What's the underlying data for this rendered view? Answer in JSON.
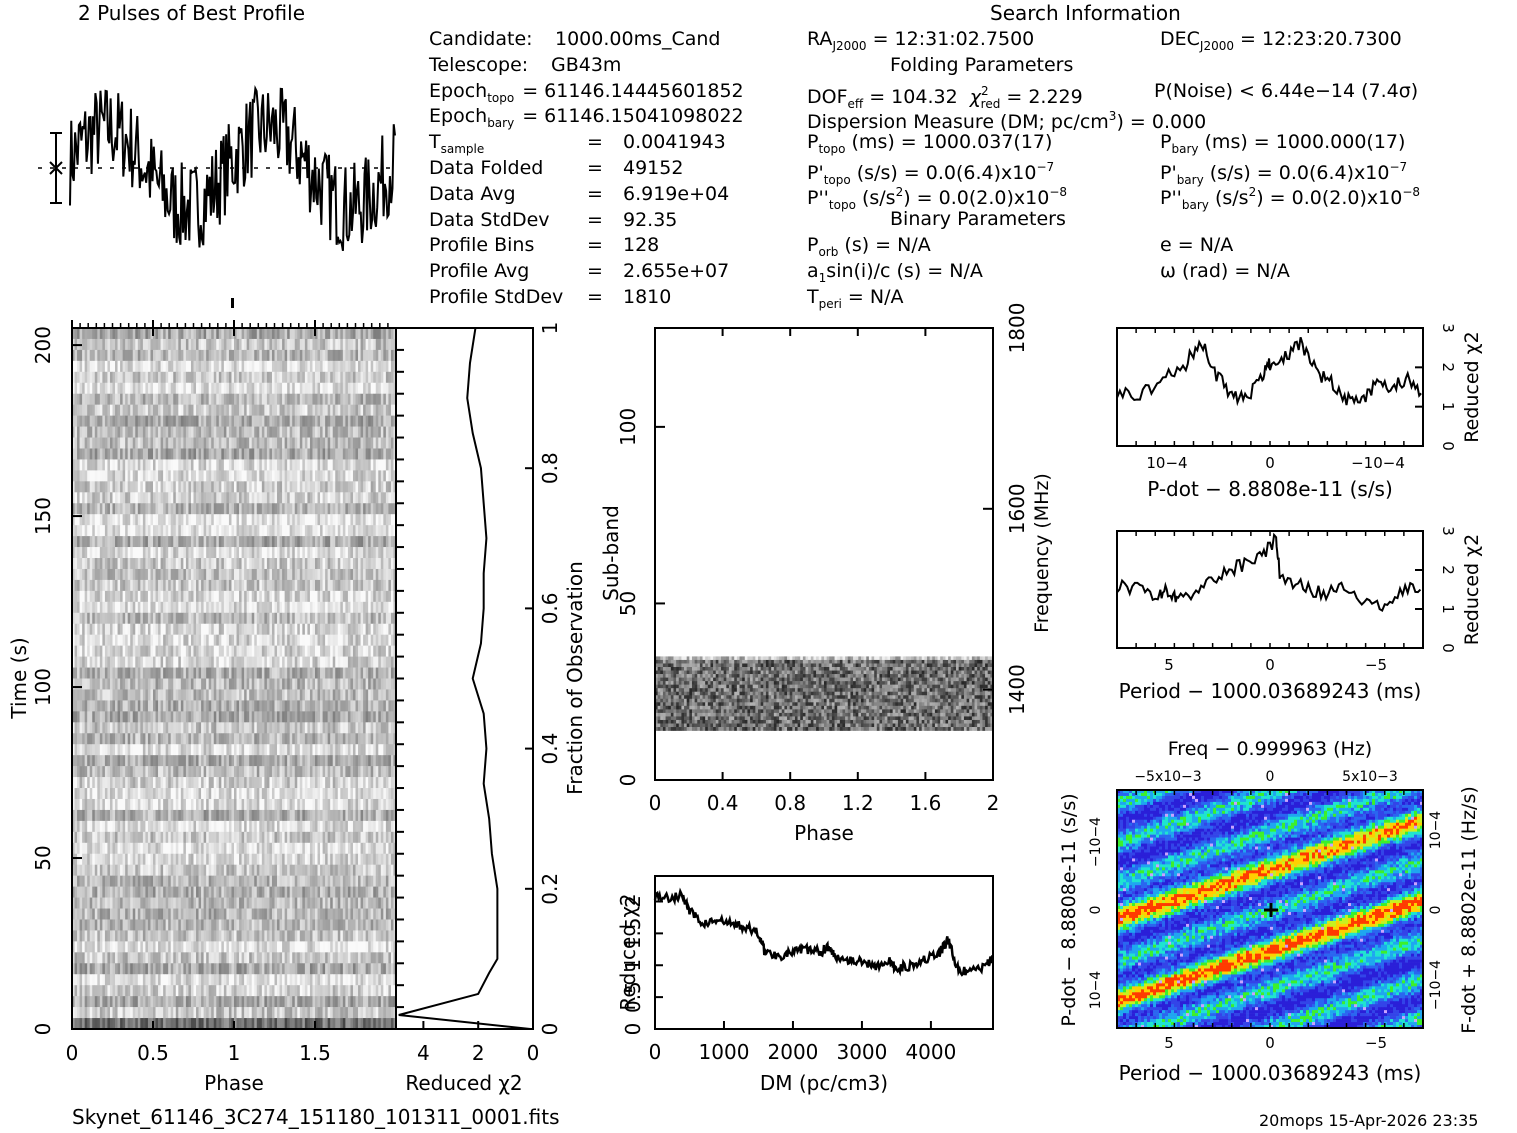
{
  "header": {
    "profile_title": "2 Pulses of Best Profile",
    "search_title": "Search Information",
    "folding_title": "Folding Parameters",
    "binary_title": "Binary Parameters"
  },
  "info_left": [
    {
      "label": "Candidate:",
      "value": "1000.00ms_Cand"
    },
    {
      "label": "Telescope:",
      "value": "GB43m"
    },
    {
      "label": "Epoch",
      "sub": "topo",
      "value": "= 61146.1444560185​2"
    },
    {
      "label": "Epoch",
      "sub": "bary",
      "value": "= 61146.15041098022"
    },
    {
      "label": "T",
      "sub": "sample",
      "eq": "=",
      "value": "0.0041943"
    },
    {
      "label": "Data Folded",
      "eq": "=",
      "value": "49152"
    },
    {
      "label": "Data Avg",
      "eq": "=",
      "value": "6.919e+04"
    },
    {
      "label": "Data StdDev",
      "eq": "=",
      "value": "92.35"
    },
    {
      "label": "Profile Bins",
      "eq": "=",
      "value": "128"
    },
    {
      "label": "Profile Avg",
      "eq": "=",
      "value": "2.655e+07"
    },
    {
      "label": "Profile StdDev",
      "eq": "=",
      "value": "1810"
    }
  ],
  "search": {
    "ra_label": "RA",
    "ra_sub": "J2000",
    "ra_value": "= 12:31:02.7500",
    "dec_label": "DEC",
    "dec_sub": "J2000",
    "dec_value": "= 12:23:20.7300"
  },
  "folding": {
    "dof_label": "DOF",
    "dof_sub": "eff",
    "dof_value": "= 104.32",
    "chi_label": "χ",
    "chi_sup": "2",
    "chi_sub": "red",
    "chi_value": "= 2.229",
    "pnoise": "P(Noise) < 6.44e−14   (7.4σ)",
    "dm_text": "Dispersion Measure (DM; pc/cm",
    "dm_sup": "3",
    "dm_value": ") = 0.000",
    "ptopo": {
      "label": "P",
      "sub": "topo",
      "text": " (ms) =  1000.037(17)"
    },
    "pdtopo": {
      "label": "P'",
      "sub": "topo",
      "text": " (s/s) = 0.0(6.4)x10",
      "sup": "−7"
    },
    "pddtopo": {
      "label": "P''",
      "sub": "topo",
      "text1": " (s/s",
      "sup1": "2",
      "text2": ") = 0.0(2.0)x10",
      "sup": "−8"
    },
    "pbary": {
      "label": "P",
      "sub": "bary",
      "text": " (ms) =  1000.000(17)"
    },
    "pdbary": {
      "label": "P'",
      "sub": "bary",
      "text": " (s/s) = 0.0(6.4)x10",
      "sup": "−7"
    },
    "pddbary": {
      "label": "P''",
      "sub": "bary",
      "text1": " (s/s",
      "sup1": "2",
      "text2": ") = 0.0(2.0)x10",
      "sup": "−8"
    }
  },
  "binary": {
    "porb": {
      "label": "P",
      "sub": "orb",
      "text": " (s) = N/A"
    },
    "asini": {
      "label": "a",
      "sub": "1",
      "text": "sin(i)/c (s) = N/A"
    },
    "tperi": {
      "label": "T",
      "sub": "peri",
      "text": " = N/A"
    },
    "e": "e = N/A",
    "omega": "ω (rad) = N/A"
  },
  "footer": {
    "filename": "Skynet_61146_3C274_151180_101311_0001.fits",
    "stamp": "20mops 15-Apr-2026 23:35"
  },
  "chart_data": [
    {
      "type": "line",
      "name": "profile",
      "title": "2 Pulses of Best Profile",
      "xlim": [
        0,
        2
      ],
      "series": [
        {
          "name": "profile",
          "shape": "two identical noisy pulses, high near phase 0.1-0.3 and 1.1-1.3, low near phase 0.6-0.9 and 1.6-1.9"
        }
      ]
    },
    {
      "type": "heatmap",
      "name": "time-phase",
      "xlabel": "Phase",
      "ylabel": "Time (s)",
      "xticks": [
        "0",
        "0.5",
        "1",
        "1.5"
      ],
      "yticks": [
        "0",
        "50",
        "100",
        "150",
        "200"
      ],
      "xlim": [
        0,
        2
      ],
      "ylim": [
        0,
        205
      ],
      "colormap": "grayscale"
    },
    {
      "type": "line",
      "name": "time-chi2",
      "xlabel": "Reduced χ2",
      "ylabel": "Fraction of Observation",
      "xticks": [
        "4",
        "2",
        "0"
      ],
      "yticks": [
        "0",
        "0.2",
        "0.4",
        "0.6",
        "0.8",
        "1"
      ],
      "xlim": [
        5,
        0
      ],
      "ylim": [
        0,
        1
      ],
      "y": [
        0,
        0.02,
        0.05,
        0.08,
        0.1,
        0.15,
        0.2,
        0.25,
        0.3,
        0.35,
        0.4,
        0.45,
        0.5,
        0.55,
        0.6,
        0.65,
        0.7,
        0.75,
        0.8,
        0.85,
        0.9,
        0.95,
        1.0
      ],
      "x": [
        0.1,
        4.9,
        2.0,
        1.6,
        1.3,
        1.3,
        1.3,
        1.5,
        1.6,
        1.8,
        1.7,
        1.8,
        2.2,
        1.9,
        1.8,
        1.8,
        1.7,
        1.8,
        1.9,
        2.2,
        2.4,
        2.3,
        2.1
      ]
    },
    {
      "type": "heatmap",
      "name": "subband-phase",
      "xlabel": "Phase",
      "ylabel": "Sub-band",
      "y2label": "Frequency (MHz)",
      "xticks": [
        "0",
        "0.4",
        "0.8",
        "1.2",
        "1.6",
        "2"
      ],
      "yticks": [
        "0",
        "50",
        "100"
      ],
      "y2ticks": [
        "1400",
        "1600",
        "1800"
      ],
      "xlim": [
        0,
        2
      ],
      "ylim": [
        0,
        128
      ],
      "occupied_subbands": [
        14,
        35
      ],
      "colormap": "grayscale"
    },
    {
      "type": "line",
      "name": "dm-chi2",
      "xlabel": "DM (pc/cm3)",
      "ylabel": "Reduced χ2",
      "xticks": [
        "0",
        "1000",
        "2000",
        "3000",
        "4000"
      ],
      "yticks": [
        "0",
        "0.5",
        "1",
        "1.5",
        "2"
      ],
      "xlim": [
        0,
        4900
      ],
      "ylim": [
        0,
        2.4
      ],
      "x": [
        0,
        200,
        400,
        500,
        700,
        900,
        1100,
        1300,
        1500,
        1600,
        1800,
        2000,
        2200,
        2400,
        2500,
        2600,
        2800,
        3000,
        3200,
        3400,
        3500,
        3700,
        3900,
        4100,
        4250,
        4400,
        4600,
        4800,
        4900
      ],
      "y": [
        2.1,
        2.05,
        2.1,
        1.85,
        1.65,
        1.7,
        1.65,
        1.6,
        1.5,
        1.2,
        1.15,
        1.2,
        1.25,
        1.2,
        1.3,
        1.15,
        1.1,
        1.05,
        1.0,
        1.05,
        0.95,
        1.0,
        1.1,
        1.15,
        1.4,
        0.9,
        0.9,
        1.0,
        1.1
      ]
    },
    {
      "type": "line",
      "name": "pdot-chi2",
      "xlabel": "P-dot − 8.8808e-11 (s/s)",
      "ylabel": "Reduced χ2",
      "xticks": [
        "10−4",
        "0",
        "−10−4"
      ],
      "yticks": [
        "0",
        "1",
        "2",
        "3"
      ],
      "ylim": [
        0,
        3
      ],
      "x": [
        -1.0,
        -0.85,
        -0.7,
        -0.55,
        -0.45,
        -0.35,
        -0.25,
        -0.15,
        -0.05,
        0.0,
        0.1,
        0.2,
        0.3,
        0.4,
        0.5,
        0.6,
        0.7,
        0.8,
        0.9,
        1.0
      ],
      "y": [
        1.4,
        1.3,
        1.7,
        2.1,
        2.7,
        1.8,
        1.3,
        1.2,
        1.8,
        2.1,
        2.3,
        2.6,
        1.9,
        1.6,
        1.2,
        1.1,
        1.6,
        1.5,
        1.7,
        1.3
      ],
      "x_note": "x reversed (plotted from +1.5e-4 to -1.5e-4)"
    },
    {
      "type": "line",
      "name": "period-chi2",
      "xlabel": "Period − 1000.03689243 (ms)",
      "ylabel": "Reduced χ2",
      "xticks": [
        "5",
        "0",
        "−5"
      ],
      "yticks": [
        "0",
        "1",
        "2",
        "3"
      ],
      "xlim": [
        7.5,
        -7.5
      ],
      "ylim": [
        0,
        3
      ],
      "x": [
        7.5,
        6.5,
        5.5,
        5.0,
        4.5,
        3.5,
        2.5,
        1.5,
        0.5,
        -0.3,
        -0.5,
        -1.5,
        -2.5,
        -3.5,
        -4.5,
        -5.5,
        -6.5,
        -7.5
      ],
      "y": [
        1.6,
        1.5,
        1.3,
        1.5,
        1.3,
        1.5,
        1.9,
        2.1,
        2.3,
        2.8,
        1.8,
        1.6,
        1.4,
        1.5,
        1.2,
        1.1,
        1.5,
        1.6
      ]
    },
    {
      "type": "heatmap",
      "name": "ppdot-plane",
      "title": "Freq − 0.999963 (Hz)",
      "xlabel": "Period − 1000.03689243 (ms)",
      "ylabel": "P-dot − 8.8808e-11 (s/s)",
      "y2label": "F-dot + 8.8802e-11 (Hz/s)",
      "xticks": [
        "5",
        "0",
        "−5"
      ],
      "x2ticks": [
        "−5x10−3",
        "0",
        "5x10−3"
      ],
      "yticks": [
        "−10−4",
        "0",
        "10−4"
      ],
      "y2ticks": [
        "10−4",
        "0",
        "−10−4"
      ],
      "best_marker": [
        0,
        0
      ],
      "colormap": "rainbow",
      "colors": {
        "low": "#1c2fe0",
        "mid": "#1fe4d0",
        "high": "#3cf02a",
        "peak": "#ff3a00",
        "white": "#c9a3ff"
      }
    }
  ]
}
